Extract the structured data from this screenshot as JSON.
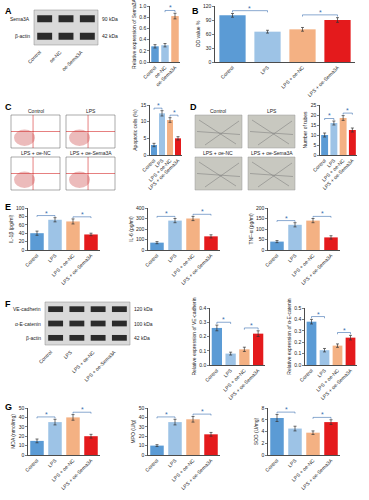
{
  "chart_data": [
    {
      "type": "bar",
      "y_label": "Relative expression of Sema3A",
      "categories": [
        "Control",
        "oe-NC",
        "oe-Sema3A"
      ],
      "values": [
        0.28,
        0.3,
        0.82
      ],
      "errors": [
        0.03,
        0.03,
        0.05
      ],
      "colors": [
        "#5b9bd5",
        "#9dc3e6",
        "#f4b183"
      ],
      "ylim": [
        0,
        1
      ],
      "yticks": [
        {
          "value": 0,
          "label": "0.0"
        },
        0.2,
        0.4,
        0.6,
        0.8,
        {
          "value": 1,
          "label": "1.0"
        }
      ],
      "annotations": [
        {
          "text": "*",
          "between": [
            "oe-NC",
            "oe-Sema3A"
          ]
        }
      ]
    },
    {
      "type": "bar",
      "y_label": "OD value %",
      "categories": [
        "Control",
        "LPS",
        "LPS + oe-NC",
        "LPS + oe-Sema3A"
      ],
      "values": [
        100,
        65,
        70,
        90
      ],
      "errors": [
        4,
        3,
        4,
        5
      ],
      "colors": [
        "#5b9bd5",
        "#9dc3e6",
        "#f4b183",
        "#e41a1c"
      ],
      "ylim": [
        0,
        120
      ],
      "yticks": [
        0,
        30,
        60,
        90,
        120
      ],
      "annotations": [
        {
          "text": "*",
          "between": [
            "Control",
            "LPS"
          ]
        },
        {
          "text": "*",
          "between": [
            "LPS + oe-NC",
            "LPS + oe-Sema3A"
          ]
        }
      ]
    },
    {
      "type": "bar",
      "y_label": "Apoptotic cells (%)",
      "categories": [
        "Control",
        "LPS",
        "LPS + oe-NC",
        "LPS + oe-Sema3A"
      ],
      "values": [
        3,
        12.5,
        10.5,
        5
      ],
      "errors": [
        0.5,
        0.8,
        0.7,
        0.5
      ],
      "colors": [
        "#5b9bd5",
        "#9dc3e6",
        "#f4b183",
        "#e41a1c"
      ],
      "ylim": [
        0,
        15
      ],
      "yticks": [
        0,
        5,
        10,
        15
      ],
      "annotations": [
        {
          "text": "*",
          "between": [
            "Control",
            "LPS"
          ]
        },
        {
          "text": "*",
          "between": [
            "LPS + oe-NC",
            "LPS + oe-Sema3A"
          ]
        }
      ]
    },
    {
      "type": "bar",
      "y_label": "Number of tubes",
      "categories": [
        "Control",
        "LPS",
        "LPS + oe-NC",
        "LPS + oe-Sema3A"
      ],
      "values": [
        10,
        16,
        18.5,
        12.5
      ],
      "errors": [
        1,
        1,
        1.2,
        1
      ],
      "colors": [
        "#5b9bd5",
        "#9dc3e6",
        "#f4b183",
        "#e41a1c"
      ],
      "ylim": [
        0,
        25
      ],
      "yticks": [
        0,
        5,
        10,
        15,
        20,
        25
      ],
      "annotations": [
        {
          "text": "*",
          "between": [
            "Control",
            "LPS"
          ]
        },
        {
          "text": "*",
          "between": [
            "LPS + oe-NC",
            "LPS + oe-Sema3A"
          ]
        }
      ]
    },
    {
      "type": "bar",
      "y_label": "IL-1β (pg/ml)",
      "categories": [
        "Control",
        "LPS",
        "LPS + oe-NC",
        "LPS + oe-Sema3A"
      ],
      "values": [
        40,
        72,
        68,
        37
      ],
      "errors": [
        5,
        5,
        6,
        3
      ],
      "colors": [
        "#5b9bd5",
        "#9dc3e6",
        "#f4b183",
        "#e41a1c"
      ],
      "ylim": [
        0,
        100
      ],
      "yticks": [
        0,
        20,
        40,
        60,
        80,
        100
      ],
      "annotations": [
        {
          "text": "*",
          "between": [
            "Control",
            "LPS"
          ]
        },
        {
          "text": "*",
          "between": [
            "LPS + oe-NC",
            "LPS + oe-Sema3A"
          ]
        }
      ]
    },
    {
      "type": "bar",
      "y_label": "IL-6 (pg/ml)",
      "categories": [
        "Control",
        "LPS",
        "LPS + oe-NC",
        "LPS + oe-Sema3A"
      ],
      "values": [
        70,
        280,
        300,
        130
      ],
      "errors": [
        10,
        20,
        20,
        15
      ],
      "colors": [
        "#5b9bd5",
        "#9dc3e6",
        "#f4b183",
        "#e41a1c"
      ],
      "ylim": [
        0,
        400
      ],
      "yticks": [
        0,
        100,
        200,
        300,
        400
      ],
      "annotations": [
        {
          "text": "*",
          "between": [
            "Control",
            "LPS"
          ]
        },
        {
          "text": "*",
          "between": [
            "LPS + oe-NC",
            "LPS + oe-Sema3A"
          ]
        }
      ]
    },
    {
      "type": "bar",
      "y_label": "TNF-α (pg/ml)",
      "categories": [
        "Control",
        "LPS",
        "LPS + oe-NC",
        "LPS + oe-Sema3A"
      ],
      "values": [
        40,
        120,
        140,
        60
      ],
      "errors": [
        5,
        10,
        10,
        8
      ],
      "colors": [
        "#5b9bd5",
        "#9dc3e6",
        "#f4b183",
        "#e41a1c"
      ],
      "ylim": [
        0,
        200
      ],
      "yticks": [
        0,
        50,
        100,
        150,
        200
      ],
      "annotations": [
        {
          "text": "*",
          "between": [
            "Control",
            "LPS"
          ]
        },
        {
          "text": "*",
          "between": [
            "LPS + oe-NC",
            "LPS + oe-Sema3A"
          ]
        }
      ]
    },
    {
      "type": "bar",
      "y_label": "Relative expression of VE-cadherin",
      "categories": [
        "Control",
        "LPS",
        "LPS + oe-NC",
        "LPS + oe-Sema3A"
      ],
      "values": [
        0.26,
        0.08,
        0.11,
        0.22
      ],
      "errors": [
        0.02,
        0.01,
        0.015,
        0.02
      ],
      "colors": [
        "#5b9bd5",
        "#9dc3e6",
        "#f4b183",
        "#e41a1c"
      ],
      "ylim": [
        0,
        0.4
      ],
      "yticks": [
        {
          "value": 0,
          "label": "0.0"
        },
        0.1,
        0.2,
        0.3,
        0.4
      ],
      "annotations": [
        {
          "text": "*",
          "between": [
            "Control",
            "LPS"
          ]
        },
        {
          "text": "*",
          "between": [
            "LPS + oe-NC",
            "LPS + oe-Sema3A"
          ]
        }
      ]
    },
    {
      "type": "bar",
      "y_label": "Relative expression of α-E-catenin",
      "categories": [
        "Control",
        "LPS",
        "LPS + oe-NC",
        "LPS + oe-Sema3A"
      ],
      "values": [
        0.38,
        0.13,
        0.17,
        0.24
      ],
      "errors": [
        0.02,
        0.015,
        0.015,
        0.02
      ],
      "colors": [
        "#5b9bd5",
        "#9dc3e6",
        "#f4b183",
        "#e41a1c"
      ],
      "ylim": [
        0,
        0.5
      ],
      "yticks": [
        {
          "value": 0,
          "label": "0.0"
        },
        0.1,
        0.2,
        0.3,
        0.4,
        0.5
      ],
      "annotations": [
        {
          "text": "*",
          "between": [
            "Control",
            "LPS"
          ]
        },
        {
          "text": "*",
          "between": [
            "LPS + oe-NC",
            "LPS + oe-Sema3A"
          ]
        }
      ]
    },
    {
      "type": "bar",
      "y_label": "MDA (nmol/mg)",
      "categories": [
        "Control",
        "LPS",
        "LPS + oe-NC",
        "LPS + oe-Sema3A"
      ],
      "values": [
        15,
        35,
        40,
        20
      ],
      "errors": [
        2,
        3,
        3,
        2
      ],
      "colors": [
        "#5b9bd5",
        "#9dc3e6",
        "#f4b183",
        "#e41a1c"
      ],
      "ylim": [
        0,
        50
      ],
      "yticks": [
        0,
        10,
        20,
        30,
        40,
        50
      ],
      "annotations": [
        {
          "text": "*",
          "between": [
            "Control",
            "LPS"
          ]
        },
        {
          "text": "*",
          "between": [
            "LPS + oe-NC",
            "LPS + oe-Sema3A"
          ]
        }
      ]
    },
    {
      "type": "bar",
      "y_label": "MPO (U/g)",
      "categories": [
        "Control",
        "LPS",
        "LPS + oe-NC",
        "LPS + oe-Sema3A"
      ],
      "values": [
        10,
        35,
        38,
        22
      ],
      "errors": [
        1,
        3,
        3,
        2
      ],
      "colors": [
        "#5b9bd5",
        "#9dc3e6",
        "#f4b183",
        "#e41a1c"
      ],
      "ylim": [
        0,
        50
      ],
      "yticks": [
        0,
        10,
        20,
        30,
        40,
        50
      ],
      "annotations": [
        {
          "text": "*",
          "between": [
            "Control",
            "LPS"
          ]
        },
        {
          "text": "*",
          "between": [
            "LPS + oe-NC",
            "LPS + oe-Sema3A"
          ]
        }
      ]
    },
    {
      "type": "bar",
      "y_label": "SOD (U/mg)",
      "categories": [
        "Control",
        "LPS",
        "LPS + oe-NC",
        "LPS + oe-Sema3A"
      ],
      "values": [
        6.3,
        4.5,
        3.8,
        5.6
      ],
      "errors": [
        0.6,
        0.4,
        0.3,
        0.4
      ],
      "colors": [
        "#5b9bd5",
        "#9dc3e6",
        "#f4b183",
        "#e41a1c"
      ],
      "ylim": [
        0,
        8
      ],
      "yticks": [
        0,
        2,
        4,
        6,
        8
      ],
      "annotations": [
        {
          "text": "*",
          "between": [
            "Control",
            "LPS"
          ]
        },
        {
          "text": "*",
          "between": [
            "LPS + oe-NC",
            "LPS + oe-Sema3A"
          ]
        }
      ]
    }
  ],
  "figure": {
    "panel_labels": [
      "A",
      "B",
      "C",
      "D",
      "E",
      "F",
      "G"
    ],
    "blot_A": {
      "proteins": [
        {
          "name": "Sema3A",
          "size": "90 kDa"
        },
        {
          "name": "β-actin",
          "size": "42 kDa"
        }
      ],
      "lanes": [
        "Control",
        "oe-NC",
        "oe-Sema3A"
      ]
    },
    "flow_C": [
      "Control",
      "LPS",
      "LPS + oe-NC",
      "LPS + oe-Sema3A"
    ],
    "micrographs_D": [
      "Control",
      "LPS",
      "LPS + oe-NC",
      "LPS + oe-Sema3A"
    ],
    "blot_F": {
      "proteins": [
        {
          "name": "VE-cadherin",
          "size": "120 kDa"
        },
        {
          "name": "α-E-catenin",
          "size": "100 kDa"
        },
        {
          "name": "β-actin",
          "size": "42 kDa"
        }
      ],
      "lanes": [
        "Control",
        "LPS",
        "LPS + oe-NC",
        "LPS + oe-Sema3A"
      ]
    }
  }
}
